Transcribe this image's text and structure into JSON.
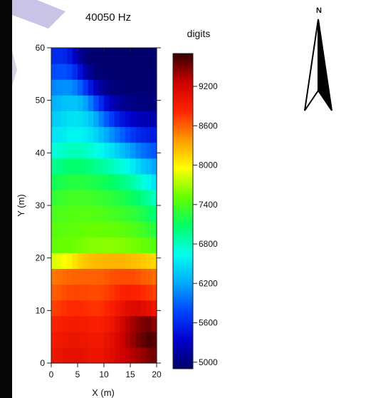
{
  "chart_data": {
    "type": "heatmap",
    "title": "40050 Hz",
    "xlabel": "X (m)",
    "ylabel": "Y (m)",
    "xlim": [
      0,
      20
    ],
    "ylim": [
      0,
      60
    ],
    "x_ticks": [
      0,
      5,
      10,
      15,
      20
    ],
    "y_ticks": [
      0,
      10,
      20,
      30,
      40,
      50,
      60
    ],
    "colorbar": {
      "label": "digits",
      "min": 4900,
      "max": 9700,
      "ticks": [
        5000,
        5600,
        6200,
        6800,
        7400,
        8000,
        8600,
        9200
      ],
      "colors": [
        "#000066",
        "#0000cc",
        "#0044ff",
        "#00aaff",
        "#00ffee",
        "#00ff66",
        "#66ff00",
        "#ffff00",
        "#ff9900",
        "#ff2200",
        "#cc0000",
        "#330000"
      ]
    },
    "x": [
      0.5,
      1.5,
      2.5,
      3.5,
      4.5,
      5.5,
      6.5,
      7.5,
      8.5,
      9.5,
      10.5,
      11.5,
      12.5,
      13.5,
      14.5,
      15.5,
      16.5,
      17.5,
      18.5,
      19.5
    ],
    "y": [
      1.5,
      4.5,
      7.5,
      10.5,
      13.5,
      16.5,
      19.5,
      22.5,
      25.5,
      28.5,
      31.5,
      34.5,
      37.5,
      40.5,
      43.5,
      46.5,
      49.5,
      52.5,
      55.5,
      58.5
    ],
    "z": [
      [
        8980,
        9010,
        9040,
        9060,
        9070,
        9060,
        9030,
        9000,
        8990,
        9010,
        9050,
        9100,
        9160,
        9220,
        9280,
        9330,
        9380,
        9430,
        9480,
        9520
      ],
      [
        8920,
        8950,
        8980,
        9000,
        9010,
        9000,
        8980,
        8950,
        8940,
        8960,
        9010,
        9070,
        9150,
        9250,
        9350,
        9420,
        9500,
        9560,
        9620,
        9600
      ],
      [
        8840,
        8870,
        8900,
        8920,
        8930,
        8920,
        8900,
        8880,
        8870,
        8890,
        8930,
        9000,
        9090,
        9200,
        9300,
        9380,
        9450,
        9500,
        9520,
        9450
      ],
      [
        8720,
        8750,
        8780,
        8800,
        8810,
        8800,
        8790,
        8770,
        8760,
        8780,
        8820,
        8880,
        8950,
        9020,
        9080,
        9120,
        9140,
        9100,
        9050,
        8980
      ],
      [
        8620,
        8640,
        8670,
        8690,
        8700,
        8700,
        8690,
        8680,
        8680,
        8690,
        8720,
        8760,
        8800,
        8840,
        8860,
        8860,
        8840,
        8800,
        8760,
        8720
      ],
      [
        8520,
        8540,
        8560,
        8580,
        8590,
        8600,
        8600,
        8600,
        8600,
        8610,
        8630,
        8650,
        8670,
        8680,
        8680,
        8670,
        8650,
        8620,
        8590,
        8560
      ],
      [
        7850,
        7900,
        7950,
        8000,
        8080,
        8150,
        8200,
        8230,
        8250,
        8260,
        8270,
        8280,
        8280,
        8270,
        8260,
        8240,
        8220,
        8190,
        8160,
        8120
      ],
      [
        7500,
        7510,
        7520,
        7530,
        7540,
        7560,
        7580,
        7600,
        7610,
        7620,
        7620,
        7620,
        7610,
        7600,
        7580,
        7560,
        7540,
        7510,
        7480,
        7450
      ],
      [
        7450,
        7460,
        7470,
        7480,
        7490,
        7500,
        7510,
        7520,
        7520,
        7520,
        7510,
        7500,
        7490,
        7470,
        7450,
        7420,
        7390,
        7350,
        7300,
        7240
      ],
      [
        7400,
        7410,
        7420,
        7430,
        7440,
        7450,
        7450,
        7440,
        7430,
        7420,
        7400,
        7380,
        7360,
        7340,
        7310,
        7280,
        7240,
        7190,
        7120,
        7040
      ],
      [
        7300,
        7320,
        7340,
        7360,
        7370,
        7370,
        7360,
        7350,
        7330,
        7310,
        7290,
        7260,
        7230,
        7200,
        7160,
        7110,
        7050,
        6980,
        6890,
        6800
      ],
      [
        7150,
        7170,
        7200,
        7230,
        7240,
        7240,
        7230,
        7210,
        7190,
        7160,
        7130,
        7090,
        7050,
        7000,
        6940,
        6870,
        6790,
        6700,
        6600,
        6500
      ],
      [
        6950,
        6980,
        7020,
        7050,
        7060,
        7050,
        7030,
        7000,
        6960,
        6920,
        6870,
        6820,
        6760,
        6700,
        6620,
        6540,
        6450,
        6360,
        6280,
        6200
      ],
      [
        6700,
        6740,
        6780,
        6810,
        6820,
        6810,
        6780,
        6740,
        6680,
        6620,
        6550,
        6480,
        6400,
        6310,
        6220,
        6130,
        6040,
        5960,
        5900,
        5850
      ],
      [
        6500,
        6530,
        6560,
        6590,
        6600,
        6590,
        6560,
        6500,
        6420,
        6320,
        6210,
        6100,
        5990,
        5880,
        5780,
        5690,
        5610,
        5560,
        5520,
        5500
      ],
      [
        6380,
        6420,
        6460,
        6490,
        6500,
        6480,
        6430,
        6340,
        6200,
        6030,
        5860,
        5700,
        5570,
        5460,
        5380,
        5320,
        5270,
        5240,
        5220,
        5200
      ],
      [
        6250,
        6290,
        6330,
        6350,
        6340,
        6290,
        6180,
        6010,
        5800,
        5590,
        5400,
        5260,
        5160,
        5100,
        5060,
        5040,
        5020,
        5010,
        5000,
        5000
      ],
      [
        6050,
        6080,
        6100,
        6090,
        6020,
        5880,
        5680,
        5470,
        5280,
        5140,
        5050,
        5000,
        4980,
        4970,
        4960,
        4960,
        4960,
        4960,
        4960,
        4960
      ],
      [
        5800,
        5820,
        5820,
        5760,
        5620,
        5420,
        5220,
        5070,
        4990,
        4960,
        4950,
        4940,
        4940,
        4940,
        4940,
        4940,
        4940,
        4940,
        4940,
        4940
      ],
      [
        5600,
        5610,
        5580,
        5480,
        5300,
        5110,
        4990,
        4950,
        4940,
        4940,
        4930,
        4930,
        4930,
        4930,
        4930,
        4930,
        4930,
        4930,
        4930,
        4930
      ]
    ]
  },
  "north_arrow": {
    "label": "N"
  }
}
